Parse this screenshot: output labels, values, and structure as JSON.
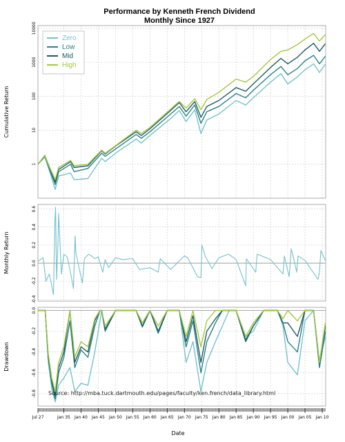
{
  "chart_data": {
    "type": "line",
    "title": "Performance by Kenneth French Dividend",
    "subtitle": "Monthly Since 1927",
    "xlabel": "Date",
    "x_ticks": [
      "Jul 27",
      "Jan 35",
      "Jan 40",
      "Jan 45",
      "Jan 50",
      "Jan 55",
      "Jan 60",
      "Jan 65",
      "Jan 70",
      "Jan 75",
      "Jan 80",
      "Jan 85",
      "Jan 90",
      "Jan 95",
      "Jan 00",
      "Jan 05",
      "Jan 10"
    ],
    "x_tick_years": [
      1927.5,
      1935,
      1940,
      1945,
      1950,
      1955,
      1960,
      1965,
      1970,
      1975,
      1980,
      1985,
      1990,
      1995,
      2000,
      2005,
      2010
    ],
    "xlim": [
      1927.5,
      2011
    ],
    "source": "Source: http://mba.tuck.dartmouth.edu/pages/faculty/ken.french/data_library.html",
    "colors": {
      "Zero": "#74c1cc",
      "Low": "#2a8087",
      "Mid": "#1c5a61",
      "High": "#a3c83d",
      "zero_line": "#8c8c8c"
    },
    "legend": {
      "position": "top-left",
      "entries": [
        "Zero",
        "Low",
        "Mid",
        "High"
      ]
    },
    "panels": [
      {
        "id": "cumulative",
        "ylabel": "Cumulative Return",
        "scale": "log",
        "ylim": [
          0.1,
          12000
        ],
        "yticks": [
          1,
          10,
          100,
          1000,
          10000
        ],
        "ytick_labels": [
          "1",
          "10",
          "100",
          "1000",
          "10000"
        ],
        "series": [
          {
            "name": "Zero",
            "x": [
              1927.5,
              1929.5,
              1930.5,
              1932.5,
              1933.5,
              1937,
              1938,
              1942,
              1946,
              1947,
              1950,
              1956,
              1957.5,
              1960,
              1966,
              1968.5,
              1970.5,
              1973,
              1974.8,
              1976.5,
              1980,
              1985,
              1987.8,
              1990,
              1995,
              1998,
              2000,
              2002.8,
              2005,
              2007.5,
              2009.2,
              2010.9
            ],
            "y": [
              1,
              1.6,
              0.8,
              0.18,
              0.45,
              0.55,
              0.35,
              0.38,
              1.5,
              1.2,
              2.1,
              5.5,
              4.2,
              7,
              22,
              38,
              18,
              40,
              8,
              20,
              30,
              75,
              55,
              90,
              260,
              460,
              230,
              370,
              600,
              900,
              500,
              880
            ]
          },
          {
            "name": "Low",
            "x": [
              1927.5,
              1929.5,
              1930.5,
              1932.5,
              1933.5,
              1937,
              1938,
              1942,
              1946,
              1947,
              1950,
              1956,
              1957.5,
              1960,
              1966,
              1968.5,
              1970.5,
              1973,
              1974.8,
              1976.5,
              1980,
              1985,
              1987.8,
              1990,
              1995,
              1998,
              2000,
              2002.8,
              2005,
              2007.5,
              2009.2,
              2010.9
            ],
            "y": [
              1,
              1.7,
              0.9,
              0.25,
              0.6,
              1,
              0.6,
              0.75,
              2.1,
              1.7,
              2.8,
              7.5,
              5.8,
              9,
              30,
              50,
              26,
              55,
              16,
              35,
              50,
              120,
              90,
              150,
              430,
              750,
              430,
              650,
              1100,
              1600,
              900,
              1500
            ]
          },
          {
            "name": "Mid",
            "x": [
              1927.5,
              1929.5,
              1930.5,
              1932.5,
              1933.5,
              1937,
              1938,
              1942,
              1946,
              1947,
              1950,
              1956,
              1957.5,
              1960,
              1966,
              1968.5,
              1970.5,
              1973,
              1974.8,
              1976.5,
              1980,
              1985,
              1987.8,
              1990,
              1995,
              1998,
              2000,
              2002.8,
              2005,
              2007.5,
              2009.2,
              2010.9
            ],
            "y": [
              1,
              1.8,
              1,
              0.3,
              0.7,
              1.2,
              0.8,
              0.9,
              2.5,
              2,
              3.4,
              9,
              7,
              11,
              38,
              65,
              35,
              70,
              24,
              50,
              75,
              180,
              140,
              230,
              700,
              1300,
              900,
              1400,
              2300,
              3600,
              2100,
              3500
            ]
          },
          {
            "name": "High",
            "x": [
              1927.5,
              1929.5,
              1930.5,
              1932.5,
              1933.5,
              1937,
              1938,
              1942,
              1946,
              1947,
              1950,
              1956,
              1957.5,
              1960,
              1966,
              1968.5,
              1970.5,
              1973,
              1974.8,
              1976.5,
              1980,
              1985,
              1987.8,
              1990,
              1995,
              1998,
              2000,
              2002.8,
              2005,
              2007.5,
              2009.2,
              2010.9
            ],
            "y": [
              1,
              1.75,
              1,
              0.35,
              0.8,
              1.3,
              0.9,
              1,
              2.6,
              2.1,
              3.5,
              10,
              8,
              12,
              42,
              70,
              45,
              85,
              40,
              80,
              130,
              320,
              260,
              380,
              1200,
              2100,
              2300,
              3300,
              4800,
              7000,
              4200,
              6500
            ]
          }
        ]
      },
      {
        "id": "monthly",
        "ylabel": "Monthly Return",
        "scale": "linear",
        "ylim": [
          -0.42,
          0.65
        ],
        "yticks": [
          -0.4,
          -0.2,
          0,
          0.2,
          0.4,
          0.6
        ],
        "ytick_labels": [
          "-0.4",
          "-0.2",
          "0.0",
          "0.2",
          "0.4",
          "0.6"
        ],
        "series": [
          {
            "name": "Zero",
            "x": [
              1927.5,
              1929,
              1929.8,
              1930.8,
              1931.5,
              1932,
              1932.4,
              1932.6,
              1932.9,
              1933.3,
              1933.5,
              1934.3,
              1935,
              1936,
              1937.2,
              1937.8,
              1938.3,
              1938.5,
              1939.7,
              1940.4,
              1941,
              1942.2,
              1943,
              1944,
              1945,
              1946.3,
              1947,
              1948,
              1950,
              1952,
              1955,
              1957,
              1960,
              1962.4,
              1963,
              1966,
              1970,
              1971,
              1973.8,
              1974.8,
              1975.1,
              1976,
              1978,
              1980,
              1982.8,
              1985,
              1987.8,
              1988,
              1990.7,
              1991.1,
              1995,
              1998.6,
              1999,
              2000.4,
              2001,
              2002.6,
              2003,
              2005,
              2008.8,
              2009.2,
              2009.6,
              2010.9
            ],
            "y": [
              0.02,
              0.06,
              -0.2,
              -0.12,
              -0.25,
              -0.35,
              0.45,
              0.62,
              -0.18,
              0.22,
              0.55,
              -0.12,
              0.1,
              0.07,
              -0.15,
              -0.28,
              0.3,
              0.12,
              -0.1,
              -0.22,
              0.05,
              0.1,
              0.08,
              0.05,
              0.07,
              -0.1,
              0.04,
              -0.05,
              0.06,
              0.04,
              0.05,
              -0.07,
              -0.05,
              -0.1,
              0.05,
              -0.07,
              0.08,
              0.06,
              -0.15,
              -0.16,
              0.2,
              0.08,
              -0.06,
              0.06,
              0.1,
              0.04,
              -0.25,
              0.05,
              -0.1,
              0.1,
              0.04,
              -0.12,
              0.08,
              -0.15,
              0.16,
              -0.1,
              0.08,
              0.03,
              -0.18,
              -0.1,
              0.14,
              0.03
            ]
          }
        ]
      },
      {
        "id": "drawdown",
        "ylabel": "Drawdown",
        "scale": "linear",
        "ylim": [
          -0.92,
          0.03
        ],
        "yticks": [
          -0.8,
          -0.6,
          -0.4,
          -0.2,
          0
        ],
        "ytick_labels": [
          "-0.8",
          "-0.6",
          "-0.4",
          "-0.2",
          "0.0"
        ],
        "series": [
          {
            "name": "Zero",
            "x": [
              1927.5,
              1929.6,
              1930.5,
              1931.5,
              1932.5,
              1933.5,
              1935,
              1936.8,
              1938.2,
              1940,
              1942,
              1944,
              1945.5,
              1946,
              1947,
              1950,
              1955,
              1956,
              1957.8,
              1960,
              1962.4,
              1965,
              1966,
              1968.5,
              1970.5,
              1972.5,
              1974.8,
              1976.5,
              1979,
              1981,
              1983,
              1985,
              1987.8,
              1990,
              1993,
              1997,
              1998.6,
              2000,
              2002.8,
              2005,
              2007.5,
              2009.2,
              2010.9
            ],
            "y": [
              0,
              0,
              -0.5,
              -0.75,
              -0.88,
              -0.72,
              -0.65,
              -0.55,
              -0.78,
              -0.7,
              -0.72,
              -0.4,
              -0.1,
              0,
              -0.2,
              0,
              0,
              0,
              -0.12,
              0,
              -0.2,
              0,
              0,
              0,
              -0.5,
              -0.3,
              -0.78,
              -0.5,
              -0.3,
              -0.15,
              0,
              0,
              -0.25,
              -0.2,
              0,
              0,
              -0.15,
              -0.5,
              -0.62,
              -0.1,
              0,
              -0.5,
              -0.25
            ]
          },
          {
            "name": "Low",
            "x": [
              1927.5,
              1929.6,
              1930.5,
              1931.5,
              1932.5,
              1933.5,
              1935,
              1936.8,
              1938.2,
              1940,
              1942,
              1944,
              1945.5,
              1946,
              1947,
              1950,
              1955,
              1956,
              1957.8,
              1960,
              1962.4,
              1965,
              1966,
              1968.5,
              1970.5,
              1972.5,
              1974.8,
              1976.5,
              1979,
              1981,
              1983,
              1985,
              1987.8,
              1990,
              1993,
              1997,
              1998.6,
              2000,
              2002.8,
              2005,
              2007.5,
              2009.2,
              2010.9
            ],
            "y": [
              0,
              0,
              -0.45,
              -0.7,
              -0.85,
              -0.6,
              -0.45,
              -0.1,
              -0.55,
              -0.38,
              -0.45,
              -0.15,
              0,
              0,
              -0.2,
              0,
              0,
              0,
              -0.16,
              0,
              -0.22,
              0,
              0,
              0,
              -0.35,
              -0.1,
              -0.6,
              -0.3,
              -0.12,
              0,
              0,
              0,
              -0.28,
              -0.15,
              0,
              0,
              -0.12,
              -0.3,
              -0.4,
              0,
              0,
              -0.55,
              -0.2
            ]
          },
          {
            "name": "Mid",
            "x": [
              1927.5,
              1929.6,
              1930.5,
              1931.5,
              1932.5,
              1933.5,
              1935,
              1936.8,
              1938.2,
              1940,
              1942,
              1944,
              1945.5,
              1946,
              1947,
              1950,
              1955,
              1956,
              1957.8,
              1960,
              1962.4,
              1965,
              1966,
              1968.5,
              1970.5,
              1972.5,
              1974.8,
              1976.5,
              1979,
              1981,
              1983,
              1985,
              1987.8,
              1990,
              1993,
              1997,
              1998.6,
              2000,
              2002.8,
              2005,
              2007.5,
              2009.2,
              2010.9
            ],
            "y": [
              0,
              0,
              -0.45,
              -0.68,
              -0.82,
              -0.55,
              -0.4,
              0,
              -0.5,
              -0.35,
              -0.4,
              -0.1,
              0,
              0,
              -0.18,
              0,
              0,
              0,
              -0.15,
              0,
              -0.2,
              0,
              0,
              0,
              -0.3,
              -0.05,
              -0.5,
              -0.2,
              -0.08,
              0,
              0,
              0,
              -0.3,
              -0.15,
              0,
              0,
              -0.12,
              -0.12,
              -0.25,
              0,
              0,
              -0.5,
              -0.15
            ]
          },
          {
            "name": "High",
            "x": [
              1927.5,
              1929.6,
              1930.5,
              1931.5,
              1932.5,
              1933.5,
              1935,
              1936.8,
              1938.2,
              1940,
              1942,
              1944,
              1945.5,
              1946,
              1947,
              1950,
              1955,
              1956,
              1957.8,
              1960,
              1962.4,
              1965,
              1966,
              1968.5,
              1970.5,
              1972.5,
              1974.8,
              1976.5,
              1979,
              1981,
              1983,
              1985,
              1987.8,
              1990,
              1993,
              1997,
              1998.6,
              2000,
              2002.8,
              2005,
              2007.5,
              2009.2,
              2010.9
            ],
            "y": [
              0,
              0,
              -0.42,
              -0.65,
              -0.78,
              -0.5,
              -0.35,
              0,
              -0.45,
              -0.3,
              -0.35,
              -0.08,
              0,
              0,
              -0.15,
              0,
              0,
              0,
              -0.12,
              0,
              -0.15,
              0,
              0,
              0,
              -0.25,
              0,
              -0.35,
              -0.1,
              0,
              0,
              0,
              0,
              -0.25,
              -0.12,
              0,
              0,
              -0.08,
              0,
              -0.1,
              0,
              0,
              -0.5,
              -0.12
            ]
          }
        ]
      }
    ]
  }
}
